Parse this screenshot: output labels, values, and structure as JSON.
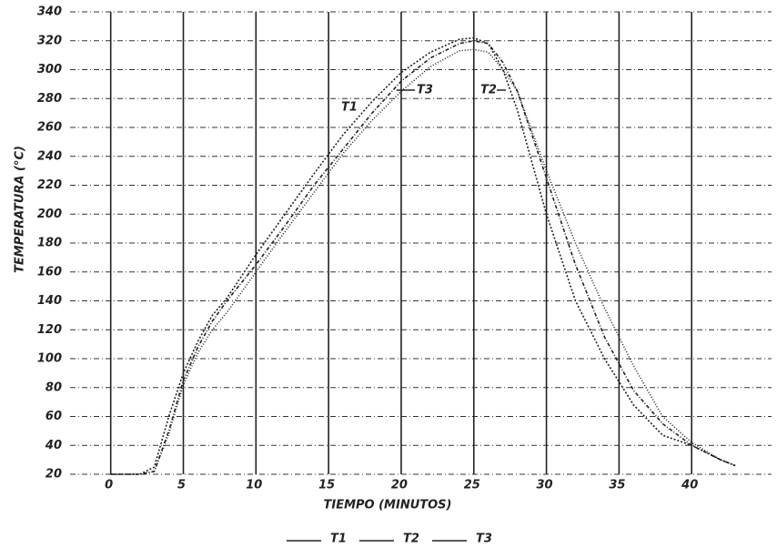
{
  "chart_data": {
    "type": "line",
    "xlabel": "TIEMPO (MINUTOS)",
    "ylabel": "TEMPERATURA (°C)",
    "x": [
      0,
      2,
      3,
      4,
      5,
      6,
      7,
      8,
      10,
      12,
      14,
      16,
      18,
      20,
      22,
      24,
      25,
      26,
      27,
      28,
      30,
      32,
      34,
      36,
      38,
      40,
      42,
      43
    ],
    "series": [
      {
        "name": "T1",
        "color": "#222222",
        "values": [
          20,
          20,
          25,
          60,
          90,
          112,
          130,
          142,
          172,
          200,
          228,
          255,
          278,
          298,
          312,
          321,
          322,
          318,
          300,
          272,
          200,
          140,
          100,
          68,
          47,
          40,
          30,
          26
        ]
      },
      {
        "name": "T2",
        "color": "#222222",
        "values": [
          20,
          20,
          22,
          50,
          85,
          108,
          126,
          140,
          165,
          192,
          220,
          245,
          270,
          292,
          308,
          318,
          320,
          318,
          305,
          285,
          225,
          165,
          115,
          78,
          55,
          40,
          30,
          26
        ]
      },
      {
        "name": "T3",
        "color": "#222222",
        "values": [
          20,
          20,
          22,
          48,
          82,
          104,
          120,
          132,
          160,
          188,
          215,
          242,
          265,
          285,
          302,
          313,
          314,
          312,
          300,
          285,
          230,
          180,
          135,
          95,
          60,
          42,
          30,
          26
        ]
      }
    ],
    "annotations": [
      "T1",
      "T3",
      "T2"
    ],
    "xlim": [
      -2.8,
      45.5
    ],
    "xticks": [
      0,
      5,
      10,
      15,
      20,
      25,
      30,
      35,
      40
    ],
    "ylim": [
      20,
      340
    ],
    "yticks": [
      20,
      40,
      60,
      80,
      100,
      120,
      140,
      160,
      180,
      200,
      220,
      240,
      260,
      280,
      300,
      320,
      340
    ],
    "grid": true,
    "legend": "bottom"
  }
}
